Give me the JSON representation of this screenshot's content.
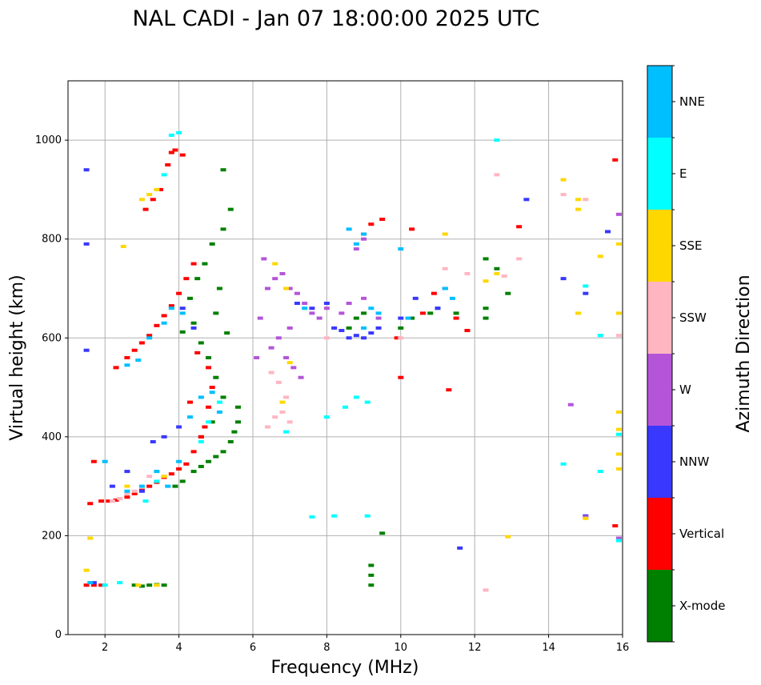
{
  "chart_data": {
    "type": "scatter",
    "title": "NAL CADI - Jan 07 18:00:00 2025 UTC",
    "xlabel": "Frequency (MHz)",
    "ylabel": "Virtual height (km)",
    "xlim": [
      1,
      16
    ],
    "ylim": [
      0,
      1120
    ],
    "xticks": [
      2,
      4,
      6,
      8,
      10,
      12,
      14,
      16
    ],
    "yticks": [
      0,
      200,
      400,
      600,
      800,
      1000
    ],
    "grid": true,
    "colorbar": {
      "label": "Azimuth Direction",
      "categories": [
        {
          "name": "X-mode",
          "color": "#008000"
        },
        {
          "name": "Vertical",
          "color": "#ff0000"
        },
        {
          "name": "NNW",
          "color": "#3838ff"
        },
        {
          "name": "W",
          "color": "#b455d8"
        },
        {
          "name": "SSW",
          "color": "#ffb6c1"
        },
        {
          "name": "SSE",
          "color": "#ffd700"
        },
        {
          "name": "E",
          "color": "#00ffff"
        },
        {
          "name": "NNE",
          "color": "#00bfff"
        }
      ]
    },
    "series": [
      {
        "name": "X-mode",
        "points": [
          [
            2.8,
            100
          ],
          [
            3.0,
            98
          ],
          [
            3.2,
            100
          ],
          [
            3.4,
            101
          ],
          [
            3.6,
            100
          ],
          [
            3.9,
            300
          ],
          [
            4.1,
            310
          ],
          [
            4.4,
            330
          ],
          [
            4.6,
            340
          ],
          [
            4.8,
            350
          ],
          [
            5.0,
            360
          ],
          [
            5.2,
            370
          ],
          [
            5.4,
            390
          ],
          [
            5.5,
            410
          ],
          [
            5.6,
            430
          ],
          [
            5.2,
            480
          ],
          [
            5.0,
            520
          ],
          [
            4.8,
            560
          ],
          [
            4.6,
            590
          ],
          [
            4.4,
            630
          ],
          [
            4.3,
            680
          ],
          [
            4.5,
            720
          ],
          [
            4.7,
            750
          ],
          [
            4.9,
            790
          ],
          [
            5.2,
            820
          ],
          [
            5.4,
            860
          ],
          [
            5.2,
            940
          ],
          [
            5.1,
            700
          ],
          [
            5.0,
            650
          ],
          [
            5.3,
            610
          ],
          [
            4.9,
            430
          ],
          [
            4.6,
            400
          ],
          [
            5.6,
            460
          ],
          [
            9.2,
            100
          ],
          [
            9.2,
            120
          ],
          [
            9.2,
            140
          ],
          [
            8.6,
            620
          ],
          [
            8.8,
            640
          ],
          [
            9.0,
            650
          ],
          [
            10.0,
            620
          ],
          [
            10.3,
            640
          ],
          [
            10.8,
            650
          ],
          [
            11.0,
            660
          ],
          [
            11.5,
            650
          ],
          [
            12.3,
            660
          ],
          [
            12.3,
            640
          ],
          [
            12.6,
            740
          ],
          [
            12.3,
            760
          ],
          [
            12.9,
            690
          ],
          [
            4.1,
            612
          ],
          [
            9.5,
            205
          ]
        ]
      },
      {
        "name": "Vertical",
        "points": [
          [
            1.5,
            100
          ],
          [
            1.7,
            100
          ],
          [
            1.9,
            100
          ],
          [
            1.6,
            265
          ],
          [
            1.9,
            270
          ],
          [
            2.1,
            270
          ],
          [
            2.3,
            272
          ],
          [
            2.6,
            278
          ],
          [
            2.8,
            285
          ],
          [
            3.0,
            292
          ],
          [
            3.2,
            300
          ],
          [
            3.4,
            308
          ],
          [
            3.6,
            318
          ],
          [
            3.8,
            325
          ],
          [
            4.0,
            335
          ],
          [
            4.2,
            345
          ],
          [
            4.4,
            370
          ],
          [
            4.6,
            400
          ],
          [
            4.7,
            420
          ],
          [
            4.8,
            460
          ],
          [
            4.9,
            500
          ],
          [
            4.5,
            570
          ],
          [
            4.8,
            540
          ],
          [
            2.3,
            540
          ],
          [
            2.6,
            560
          ],
          [
            2.8,
            575
          ],
          [
            3.0,
            590
          ],
          [
            3.2,
            605
          ],
          [
            3.4,
            625
          ],
          [
            3.6,
            645
          ],
          [
            3.8,
            665
          ],
          [
            4.0,
            690
          ],
          [
            4.2,
            720
          ],
          [
            4.4,
            750
          ],
          [
            3.1,
            860
          ],
          [
            3.3,
            880
          ],
          [
            3.5,
            900
          ],
          [
            3.7,
            950
          ],
          [
            3.8,
            975
          ],
          [
            3.9,
            980
          ],
          [
            4.1,
            970
          ],
          [
            9.0,
            810
          ],
          [
            9.2,
            830
          ],
          [
            9.5,
            840
          ],
          [
            10.3,
            820
          ],
          [
            10.6,
            650
          ],
          [
            10.9,
            690
          ],
          [
            11.2,
            700
          ],
          [
            11.5,
            640
          ],
          [
            11.8,
            615
          ],
          [
            13.2,
            825
          ],
          [
            15.8,
            960
          ],
          [
            15.8,
            220
          ],
          [
            1.7,
            350
          ],
          [
            4.3,
            470
          ],
          [
            10.0,
            520
          ],
          [
            9.9,
            600
          ],
          [
            11.3,
            495
          ]
        ]
      },
      {
        "name": "NNW",
        "points": [
          [
            1.5,
            940
          ],
          [
            1.5,
            790
          ],
          [
            1.5,
            575
          ],
          [
            1.7,
            105
          ],
          [
            2.2,
            300
          ],
          [
            2.6,
            330
          ],
          [
            3.0,
            290
          ],
          [
            3.3,
            390
          ],
          [
            3.6,
            400
          ],
          [
            4.0,
            420
          ],
          [
            4.4,
            620
          ],
          [
            4.1,
            660
          ],
          [
            7.2,
            670
          ],
          [
            7.6,
            660
          ],
          [
            8.2,
            620
          ],
          [
            8.4,
            615
          ],
          [
            8.6,
            600
          ],
          [
            8.8,
            605
          ],
          [
            9.0,
            600
          ],
          [
            9.2,
            610
          ],
          [
            9.4,
            620
          ],
          [
            10.0,
            640
          ],
          [
            10.4,
            680
          ],
          [
            11.0,
            660
          ],
          [
            13.4,
            880
          ],
          [
            14.4,
            720
          ],
          [
            15.0,
            690
          ],
          [
            15.6,
            815
          ],
          [
            11.6,
            175
          ],
          [
            15.0,
            240
          ],
          [
            8.0,
            670
          ]
        ]
      },
      {
        "name": "W",
        "points": [
          [
            6.2,
            640
          ],
          [
            6.4,
            700
          ],
          [
            6.6,
            720
          ],
          [
            6.8,
            730
          ],
          [
            7.0,
            700
          ],
          [
            7.2,
            690
          ],
          [
            7.4,
            670
          ],
          [
            7.6,
            650
          ],
          [
            7.8,
            640
          ],
          [
            8.0,
            660
          ],
          [
            6.1,
            560
          ],
          [
            6.5,
            580
          ],
          [
            6.7,
            600
          ],
          [
            6.9,
            560
          ],
          [
            7.1,
            540
          ],
          [
            7.3,
            520
          ],
          [
            7.0,
            620
          ],
          [
            8.4,
            650
          ],
          [
            8.6,
            670
          ],
          [
            9.0,
            680
          ],
          [
            9.4,
            640
          ],
          [
            8.8,
            780
          ],
          [
            9.0,
            800
          ],
          [
            14.6,
            465
          ],
          [
            15.0,
            238
          ],
          [
            15.9,
            195
          ],
          [
            15.9,
            850
          ],
          [
            6.3,
            760
          ]
        ]
      },
      {
        "name": "SSW",
        "points": [
          [
            2.2,
            270
          ],
          [
            2.4,
            275
          ],
          [
            2.6,
            285
          ],
          [
            2.8,
            290
          ],
          [
            3.2,
            320
          ],
          [
            6.4,
            420
          ],
          [
            6.6,
            440
          ],
          [
            6.8,
            450
          ],
          [
            6.9,
            480
          ],
          [
            7.0,
            430
          ],
          [
            6.7,
            510
          ],
          [
            6.5,
            530
          ],
          [
            8.0,
            600
          ],
          [
            10.0,
            600
          ],
          [
            11.2,
            740
          ],
          [
            12.6,
            930
          ],
          [
            12.8,
            725
          ],
          [
            13.2,
            760
          ],
          [
            14.4,
            890
          ],
          [
            15.0,
            880
          ],
          [
            15.9,
            605
          ],
          [
            12.3,
            90
          ],
          [
            11.8,
            730
          ]
        ]
      },
      {
        "name": "SSE",
        "points": [
          [
            1.5,
            130
          ],
          [
            1.6,
            195
          ],
          [
            2.5,
            785
          ],
          [
            2.6,
            300
          ],
          [
            3.0,
            880
          ],
          [
            3.2,
            890
          ],
          [
            3.4,
            900
          ],
          [
            3.6,
            320
          ],
          [
            6.6,
            750
          ],
          [
            6.9,
            700
          ],
          [
            7.0,
            550
          ],
          [
            6.8,
            470
          ],
          [
            12.3,
            715
          ],
          [
            12.6,
            730
          ],
          [
            14.4,
            920
          ],
          [
            14.8,
            880
          ],
          [
            14.8,
            860
          ],
          [
            14.8,
            650
          ],
          [
            15.4,
            765
          ],
          [
            15.9,
            790
          ],
          [
            15.9,
            650
          ],
          [
            15.9,
            450
          ],
          [
            15.9,
            415
          ],
          [
            15.9,
            365
          ],
          [
            15.9,
            335
          ],
          [
            15.0,
            235
          ],
          [
            12.9,
            198
          ],
          [
            2.9,
            100
          ],
          [
            3.4,
            100
          ],
          [
            11.2,
            810
          ]
        ]
      },
      {
        "name": "E",
        "points": [
          [
            2.0,
            100
          ],
          [
            2.4,
            105
          ],
          [
            3.1,
            270
          ],
          [
            3.4,
            310
          ],
          [
            3.8,
            1010
          ],
          [
            4.0,
            1015
          ],
          [
            3.6,
            930
          ],
          [
            4.6,
            390
          ],
          [
            4.8,
            430
          ],
          [
            5.1,
            470
          ],
          [
            8.2,
            240
          ],
          [
            8.5,
            460
          ],
          [
            8.8,
            480
          ],
          [
            9.1,
            470
          ],
          [
            8.0,
            440
          ],
          [
            9.1,
            240
          ],
          [
            12.6,
            1000
          ],
          [
            14.4,
            345
          ],
          [
            15.0,
            705
          ],
          [
            15.4,
            605
          ],
          [
            15.4,
            330
          ],
          [
            15.9,
            405
          ],
          [
            15.9,
            190
          ],
          [
            7.6,
            238
          ],
          [
            6.9,
            410
          ]
        ]
      },
      {
        "name": "NNE",
        "points": [
          [
            1.6,
            105
          ],
          [
            2.0,
            350
          ],
          [
            2.6,
            290
          ],
          [
            3.0,
            300
          ],
          [
            3.4,
            330
          ],
          [
            3.7,
            300
          ],
          [
            4.0,
            350
          ],
          [
            4.3,
            440
          ],
          [
            4.6,
            480
          ],
          [
            4.9,
            490
          ],
          [
            5.1,
            450
          ],
          [
            2.6,
            545
          ],
          [
            2.9,
            555
          ],
          [
            3.2,
            600
          ],
          [
            3.6,
            630
          ],
          [
            3.8,
            660
          ],
          [
            4.1,
            650
          ],
          [
            8.6,
            820
          ],
          [
            8.8,
            790
          ],
          [
            9.0,
            810
          ],
          [
            9.2,
            660
          ],
          [
            9.4,
            650
          ],
          [
            9.0,
            620
          ],
          [
            10.0,
            780
          ],
          [
            10.2,
            640
          ],
          [
            11.4,
            680
          ],
          [
            11.2,
            700
          ],
          [
            7.4,
            660
          ]
        ]
      }
    ]
  }
}
